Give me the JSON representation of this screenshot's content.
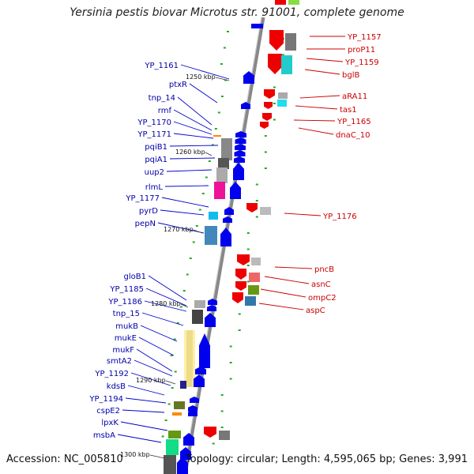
{
  "title": "Yersinia pestis biovar Microtus str. 91001, complete genome",
  "accession": "Accession: NC_005810",
  "topology": "Topology: circular; Length: 4,595,065 bp; Genes: 3,991",
  "ticks": [
    "1250 kbp",
    "1260 kbp",
    "1270 kbp",
    "1280 kbp",
    "1290 kbp",
    "1300 kbp"
  ],
  "left_genes": [
    "YP_1161",
    "ptxR",
    "tnp_14",
    "rmf",
    "YP_1170",
    "YP_1171",
    "pqiB1",
    "pqiA1",
    "uup2",
    "rlmL",
    "YP_1177",
    "pyrD",
    "pepN",
    "gloB1",
    "YP_1185",
    "YP_1186",
    "tnp_15",
    "mukB",
    "mukE",
    "mukF",
    "smtA2",
    "YP_1192",
    "kdsB",
    "YP_1194",
    "cspE2",
    "lpxK",
    "msbA"
  ],
  "right_genes": [
    "YP_1157",
    "proP11",
    "YP_1159",
    "bglB",
    "aRA11",
    "tas1",
    "YP_1165",
    "dnaC_10",
    "YP_1176",
    "pncB",
    "asnC",
    "ompC2",
    "aspC"
  ],
  "colors": {
    "forward": "#0000ee",
    "reverse": "#ee0000",
    "backbone": "#888888",
    "gc_ticks": "#22aa22"
  }
}
